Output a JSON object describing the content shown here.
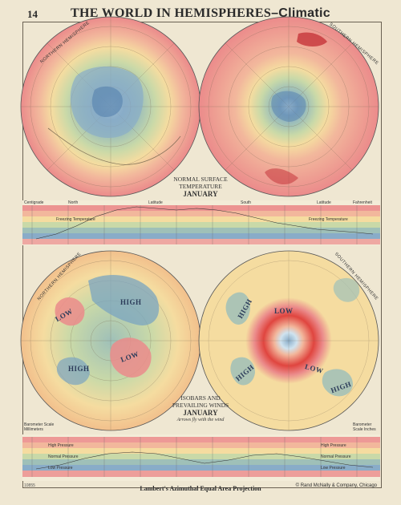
{
  "page": {
    "number": "14",
    "title_main": "THE WORLD IN HEMISPHERES",
    "title_sub": "–Climatic",
    "projection": "Lambert's Azimuthal Equal Area Projection",
    "copyright": "© Rand McNally & Company, Chicago",
    "code": "10855"
  },
  "temperature_section": {
    "label_line1": "NORMAL SURFACE",
    "label_line2": "TEMPERATURE",
    "label_line3": "JANUARY",
    "left_map_label": "NORTHERN HEMISPHERE",
    "right_map_label": "SOUTHERN HEMISPHERE",
    "band_left": "Centigrade",
    "band_right": "Fahrenheit",
    "band_latitude": "Latitude",
    "band_north": "North",
    "band_south": "South",
    "freezing_left": "Freezing Temperature",
    "freezing_right": "Freezing Temperature"
  },
  "pressure_section": {
    "label_line1": "ISOBARS AND",
    "label_line2": "PREVAILING WINDS",
    "label_line3": "JANUARY",
    "label_note": "Arrows fly with the wind",
    "left_map_label": "NORTHERN HEMISPHERE",
    "right_map_label": "SOUTHERN HEMISPHERE",
    "band_left": "Barometer Scale Millimeters",
    "band_right": "Barometer Scale Inches",
    "high_pressure_left": "High Pressure",
    "high_pressure_right": "High Pressure",
    "normal_pressure_left": "Normal Pressure",
    "normal_pressure_right": "Normal Pressure",
    "low_pressure_left": "Low Pressure",
    "low_pressure_right": "Low Pressure",
    "high_labels": [
      "HIGH",
      "HIGH",
      "HIGH",
      "HIGH",
      "HIGH"
    ],
    "low_labels": [
      "LOW",
      "LOW",
      "LOW",
      "LOW"
    ]
  },
  "colors": {
    "hot": "#eb8b8b",
    "warm": "#f2b79c",
    "mild": "#f5dca0",
    "cool": "#c9d9a8",
    "cold": "#9fc0b8",
    "very_cold": "#89acc8",
    "arctic": "#cfe3ef",
    "low_core": "#e0453f"
  }
}
